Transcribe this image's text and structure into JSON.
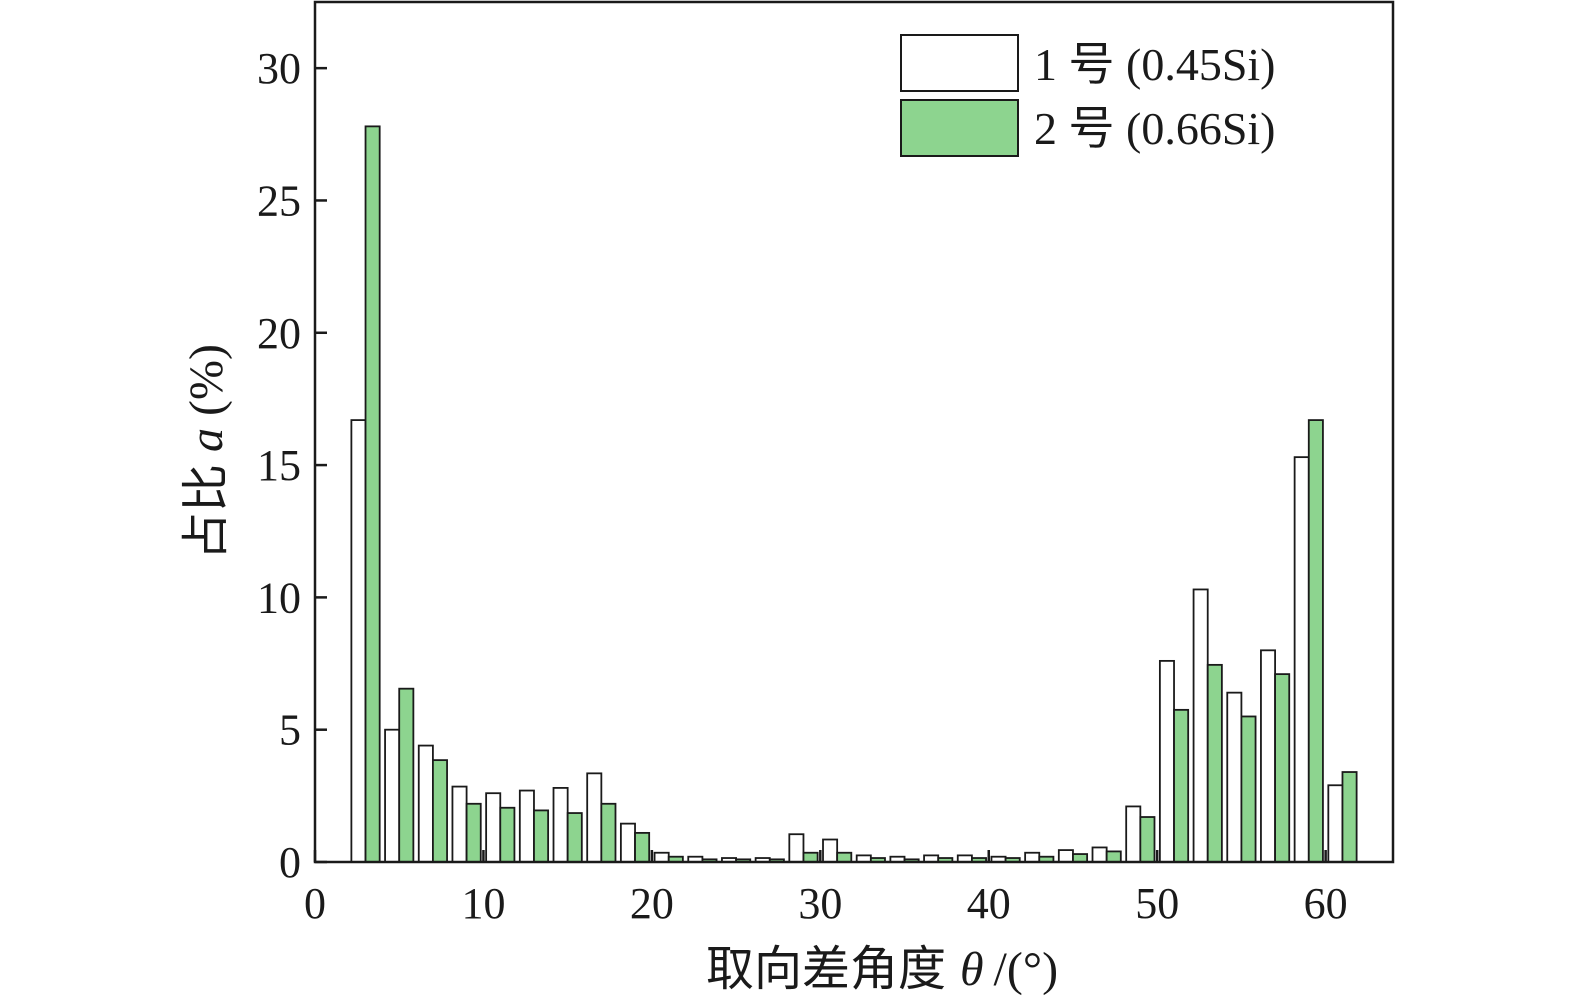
{
  "chart_data": {
    "type": "bar",
    "xlabel_main": "取向差角度",
    "xlabel_symbol": "θ",
    "xlabel_unit": "/(°)",
    "ylabel_main": "占比",
    "ylabel_symbol": "a",
    "ylabel_unit": "(%)",
    "xlim": [
      0,
      64
    ],
    "ylim": [
      0,
      32.5
    ],
    "xticks": [
      0,
      10,
      20,
      30,
      40,
      50,
      60
    ],
    "xtick_labels": [
      "0",
      "10",
      "20",
      "30",
      "40",
      "50",
      "60"
    ],
    "yticks": [
      0,
      5,
      10,
      15,
      20,
      25,
      30
    ],
    "ytick_labels": [
      "0",
      "5",
      "10",
      "15",
      "20",
      "25",
      "30"
    ],
    "grid": false,
    "legend_position": "top-right",
    "bin_centers": [
      3,
      5,
      7,
      9,
      11,
      13,
      15,
      17,
      19,
      21,
      23,
      25,
      27,
      29,
      31,
      33,
      35,
      37,
      39,
      41,
      43,
      45,
      47,
      49,
      51,
      53,
      55,
      57,
      59,
      61
    ],
    "series": [
      {
        "name": "1 号 (0.45Si)",
        "fill": "#ffffff",
        "stroke": "#1a1a1a",
        "values": [
          16.7,
          5.0,
          4.4,
          2.85,
          2.6,
          2.7,
          2.8,
          3.35,
          1.45,
          0.35,
          0.2,
          0.15,
          0.15,
          1.05,
          0.85,
          0.25,
          0.2,
          0.25,
          0.25,
          0.2,
          0.35,
          0.45,
          0.55,
          2.1,
          7.6,
          10.3,
          6.4,
          8.0,
          15.3,
          2.9
        ]
      },
      {
        "name": "2 号 (0.66Si)",
        "fill": "#8dd48f",
        "stroke": "#1a1a1a",
        "values": [
          27.8,
          6.55,
          3.85,
          2.2,
          2.05,
          1.95,
          1.85,
          2.2,
          1.1,
          0.2,
          0.1,
          0.1,
          0.1,
          0.35,
          0.35,
          0.15,
          0.1,
          0.15,
          0.15,
          0.15,
          0.2,
          0.3,
          0.4,
          1.7,
          5.75,
          7.45,
          5.5,
          7.1,
          16.7,
          3.4
        ]
      }
    ]
  }
}
